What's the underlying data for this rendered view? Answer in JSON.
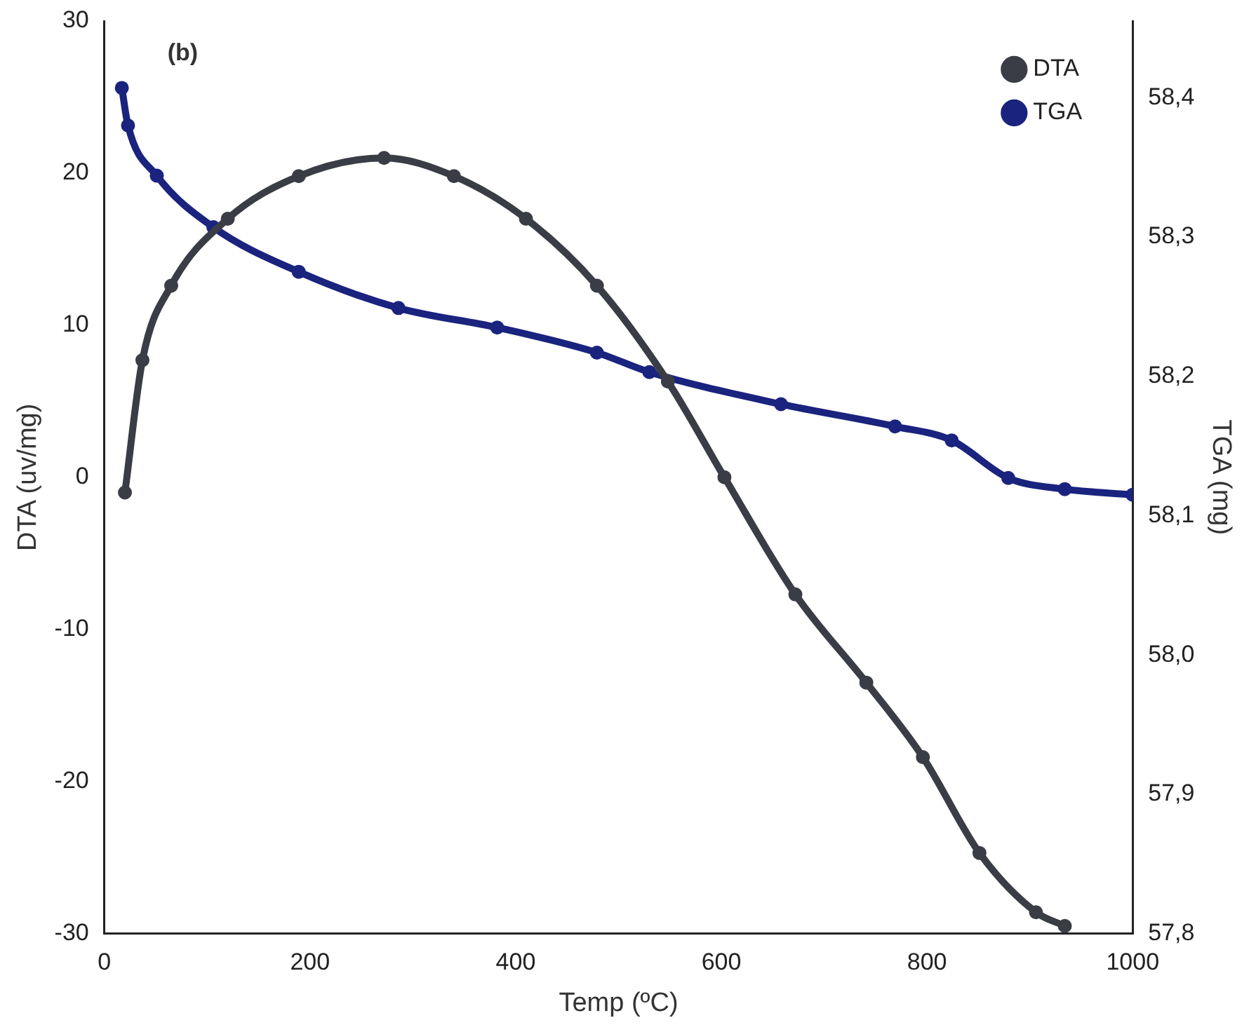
{
  "chart_data": {
    "type": "line",
    "xlabel": "Temp (ºC)",
    "ylabel": "DTA (uv/mg)",
    "y2label": "TGA (mg)",
    "annotations": [
      "(b)"
    ],
    "xlim": [
      0,
      1000
    ],
    "xticks": [
      0,
      200,
      400,
      600,
      800,
      1000
    ],
    "ylim": [
      -30,
      30
    ],
    "yticks": [
      -30,
      -20,
      -10,
      0,
      10,
      20,
      30
    ],
    "y2lim": [
      57.8,
      58.455
    ],
    "y2ticks": [
      {
        "value": 57.8,
        "label": "57,8"
      },
      {
        "value": 57.9,
        "label": "57,9"
      },
      {
        "value": 58.0,
        "label": "58,0"
      },
      {
        "value": 58.1,
        "label": "58,1"
      },
      {
        "value": 58.2,
        "label": "58,2"
      },
      {
        "value": 58.3,
        "label": "58,3"
      },
      {
        "value": 58.4,
        "label": "58,4"
      }
    ],
    "grid": false,
    "legend": "top right",
    "marker": "circle",
    "line_style": "solid",
    "series": [
      {
        "name": "DTA",
        "color": "#3a3d45",
        "x": [
          20,
          37,
          65,
          120,
          189,
          272,
          340,
          410,
          479,
          548,
          603,
          672,
          741,
          796,
          851,
          906,
          934
        ],
        "values": [
          -1,
          7.7,
          12.6,
          17,
          19.8,
          21,
          19.8,
          17,
          12.6,
          6.3,
          0,
          -7.7,
          -13.5,
          -18.4,
          -24.7,
          -28.6,
          -29.5
        ]
      },
      {
        "name": "TGA",
        "color": "#1a237e",
        "axis": "y2",
        "x": [
          17,
          23,
          51,
          106,
          189,
          286,
          382,
          479,
          530,
          658,
          769,
          824,
          879,
          934,
          1000
        ],
        "values": [
          58.407,
          58.38,
          58.344,
          58.307,
          58.275,
          58.249,
          58.235,
          58.217,
          58.203,
          58.18,
          58.164,
          58.154,
          58.127,
          58.119,
          58.115
        ]
      }
    ]
  }
}
